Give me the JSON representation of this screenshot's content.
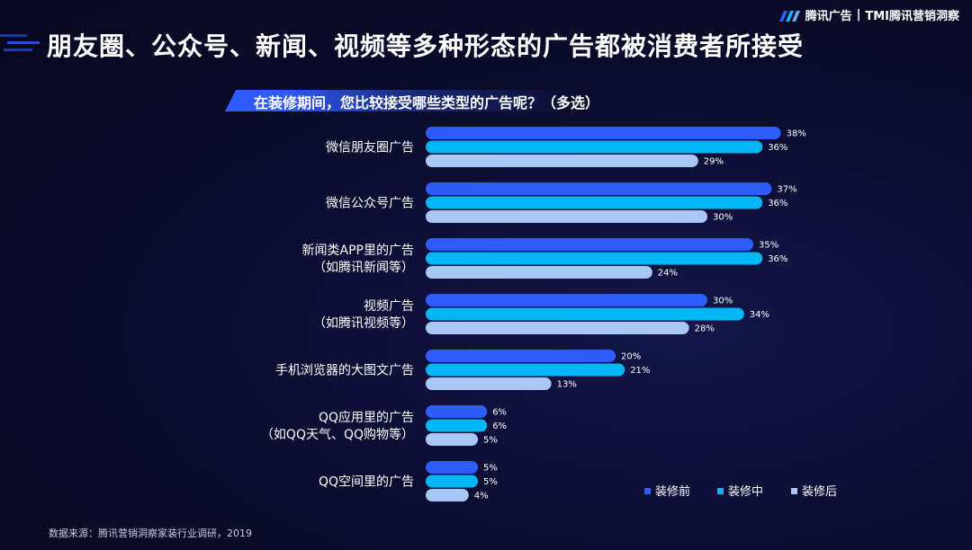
{
  "brand": {
    "name": "腾讯广告",
    "separator": "|",
    "sub_name": "TMI腾讯营销洞察"
  },
  "header": {
    "title": "朋友圈、公众号、新闻、视频等多种形态的广告都被消费者所接受",
    "question": "在装修期间，您比较接受哪些类型的广告呢？（多选）"
  },
  "footer": {
    "source": "数据来源：腾讯营销洞察家装行业调研，2019"
  },
  "chart_data": {
    "type": "bar",
    "orientation": "horizontal",
    "categories": [
      [
        "微信朋友圈广告"
      ],
      [
        "微信公众号广告"
      ],
      [
        "新闻类APP里的广告",
        "（如腾讯新闻等）"
      ],
      [
        "视频广告",
        "（如腾讯视频等）"
      ],
      [
        "手机浏览器的大图文广告"
      ],
      [
        "QQ应用里的广告",
        "（如QQ天气、QQ购物等）"
      ],
      [
        "QQ空间里的广告"
      ]
    ],
    "series": [
      {
        "name": "装修前",
        "color": "#2f5cff",
        "values": [
          38,
          37,
          35,
          30,
          20,
          6,
          5
        ]
      },
      {
        "name": "装修中",
        "color": "#00b7f4",
        "values": [
          36,
          36,
          36,
          34,
          21,
          6,
          5
        ]
      },
      {
        "name": "装修后",
        "color": "#a9c6f4",
        "values": [
          29,
          30,
          24,
          28,
          13,
          5,
          4
        ]
      }
    ],
    "value_suffix": "%",
    "legend_position": "bottom-right",
    "grid": false
  }
}
